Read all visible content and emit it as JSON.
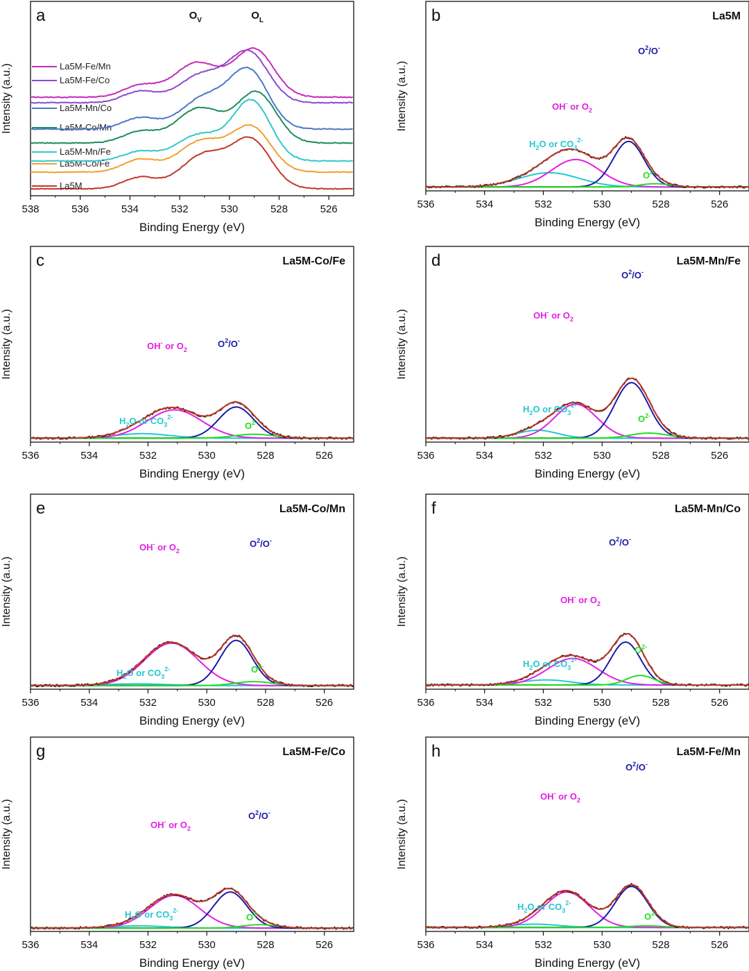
{
  "figure": {
    "colors": {
      "raw": "#111111",
      "envelope": "#c0392b",
      "oh": "#e31ee3",
      "o2o": "#1a1aa8",
      "h2o": "#22c8d2",
      "o2": "#22dd22",
      "background": "#8a8a2a"
    }
  },
  "chart_data": [
    {
      "panel": "a",
      "type": "line",
      "title": "",
      "xlabel": "Binding Energy (eV)",
      "ylabel": "Intensity (a.u.)",
      "xlim": [
        538,
        525
      ],
      "xticks": [
        538,
        536,
        534,
        532,
        530,
        528,
        526
      ],
      "annotations": [
        {
          "text": "O",
          "sub": "V",
          "x": 531.4
        },
        {
          "text": "O",
          "sub": "L",
          "x": 528.9
        }
      ],
      "series": [
        {
          "name": "La5M",
          "color": "#c0392b",
          "offset": 0.0,
          "baseline": 0.02,
          "tail": 0.0,
          "peaks": [
            [
              533.6,
              0.7,
              0.18
            ],
            [
              531.0,
              0.95,
              0.55
            ],
            [
              529.1,
              0.8,
              0.75
            ]
          ]
        },
        {
          "name": "La5M-Co/Fe",
          "color": "#f0a030",
          "offset": 0.12,
          "baseline": 0.02,
          "tail": 0.0,
          "peaks": [
            [
              533.6,
              0.7,
              0.2
            ],
            [
              531.1,
              0.95,
              0.5
            ],
            [
              529.1,
              0.8,
              0.7
            ]
          ]
        },
        {
          "name": "La5M-Mn/Fe",
          "color": "#30c8c8",
          "offset": 0.2,
          "baseline": 0.02,
          "tail": 0.0,
          "peaks": [
            [
              533.6,
              0.7,
              0.15
            ],
            [
              531.2,
              0.95,
              0.42
            ],
            [
              529.1,
              0.78,
              0.95
            ]
          ]
        },
        {
          "name": "La5M-Co/Mn",
          "color": "#1e8c5a",
          "offset": 0.33,
          "baseline": 0.02,
          "tail": 0.0,
          "peaks": [
            [
              533.6,
              0.7,
              0.18
            ],
            [
              531.2,
              0.95,
              0.56
            ],
            [
              528.9,
              0.8,
              0.8
            ]
          ]
        },
        {
          "name": "La5M-Mn/Co",
          "color": "#4a78c8",
          "offset": 0.43,
          "baseline": 0.02,
          "tail": 0.0,
          "peaks": [
            [
              533.6,
              0.7,
              0.18
            ],
            [
              531.0,
              0.95,
              0.5
            ],
            [
              529.2,
              0.8,
              0.9
            ]
          ]
        },
        {
          "name": "La5M-Fe/Co",
          "color": "#8a4ad0",
          "offset": 0.62,
          "baseline": 0.02,
          "tail": 0.0,
          "peaks": [
            [
              533.6,
              0.7,
              0.18
            ],
            [
              531.1,
              0.95,
              0.45
            ],
            [
              529.2,
              0.8,
              0.78
            ]
          ]
        },
        {
          "name": "La5M-Fe/Mn",
          "color": "#c42ab8",
          "offset": 0.66,
          "baseline": 0.02,
          "tail": 0.0,
          "peaks": [
            [
              533.6,
              0.7,
              0.18
            ],
            [
              531.3,
              0.95,
              0.55
            ],
            [
              529.0,
              0.8,
              0.76
            ]
          ]
        }
      ]
    },
    {
      "panel": "b",
      "type": "line",
      "title": "La5M",
      "xlabel": "Binding Energy (eV)",
      "ylabel": "Intensity (a.u.)",
      "xlim": [
        536,
        525
      ],
      "xticks": [
        536,
        534,
        532,
        530,
        528,
        526
      ],
      "baseline": 0.02,
      "components": [
        {
          "name": "H2O or CO3 2-",
          "x0": 531.8,
          "fwhm": 2.4,
          "height": 0.26
        },
        {
          "name": "OH- or O2",
          "x0": 530.9,
          "fwhm": 1.95,
          "height": 0.5
        },
        {
          "name": "O2 2-/O-",
          "x0": 529.1,
          "fwhm": 1.25,
          "height": 0.83
        },
        {
          "name": "O2-",
          "x0": 528.2,
          "fwhm": 1.2,
          "height": 0.06
        }
      ]
    },
    {
      "panel": "c",
      "type": "line",
      "title": "La5M-Co/Fe",
      "xlabel": "Binding Energy (eV)",
      "ylabel": "Intensity (a.u.)",
      "xlim": [
        536,
        525
      ],
      "xticks": [
        536,
        534,
        532,
        530,
        528,
        526
      ],
      "baseline": 0.02,
      "components": [
        {
          "name": "H2O or CO3 2-",
          "x0": 532.2,
          "fwhm": 2.2,
          "height": 0.08
        },
        {
          "name": "OH- or O2",
          "x0": 531.1,
          "fwhm": 2.2,
          "height": 0.5
        },
        {
          "name": "O2 2-/O-",
          "x0": 529.0,
          "fwhm": 1.4,
          "height": 0.55
        },
        {
          "name": "O2-",
          "x0": 528.4,
          "fwhm": 1.6,
          "height": 0.07
        }
      ]
    },
    {
      "panel": "d",
      "type": "line",
      "title": "La5M-Mn/Fe",
      "xlabel": "Binding Energy (eV)",
      "ylabel": "Intensity (a.u.)",
      "xlim": [
        536,
        525
      ],
      "xticks": [
        536,
        534,
        532,
        530,
        528,
        526
      ],
      "baseline": 0.02,
      "components": [
        {
          "name": "H2O or CO3 2-",
          "x0": 532.2,
          "fwhm": 1.6,
          "height": 0.14
        },
        {
          "name": "OH- or O2",
          "x0": 530.9,
          "fwhm": 1.7,
          "height": 0.6
        },
        {
          "name": "O2 2-/O-",
          "x0": 529.0,
          "fwhm": 1.35,
          "height": 0.98
        },
        {
          "name": "O2-",
          "x0": 528.4,
          "fwhm": 1.5,
          "height": 0.09
        }
      ]
    },
    {
      "panel": "e",
      "type": "line",
      "title": "La5M-Co/Mn",
      "xlabel": "Binding Energy (eV)",
      "ylabel": "Intensity (a.u.)",
      "xlim": [
        536,
        525
      ],
      "xticks": [
        536,
        534,
        532,
        530,
        528,
        526
      ],
      "baseline": 0.015,
      "components": [
        {
          "name": "H2O or CO3 2-",
          "x0": 532.4,
          "fwhm": 2.5,
          "height": 0.03
        },
        {
          "name": "OH- or O2",
          "x0": 531.2,
          "fwhm": 2.15,
          "height": 0.75
        },
        {
          "name": "O2 2-/O-",
          "x0": 529.0,
          "fwhm": 1.3,
          "height": 0.8
        },
        {
          "name": "O2-",
          "x0": 528.4,
          "fwhm": 1.5,
          "height": 0.07
        }
      ]
    },
    {
      "panel": "f",
      "type": "line",
      "title": "La5M-Mn/Co",
      "xlabel": "Binding Energy (eV)",
      "ylabel": "Intensity (a.u.)",
      "xlim": [
        536,
        525
      ],
      "xticks": [
        536,
        534,
        532,
        530,
        528,
        526
      ],
      "baseline": 0.025,
      "components": [
        {
          "name": "H2O or CO3 2-",
          "x0": 531.9,
          "fwhm": 2.0,
          "height": 0.09
        },
        {
          "name": "OH- or O2",
          "x0": 531.0,
          "fwhm": 2.0,
          "height": 0.47
        },
        {
          "name": "O2 2-/O-",
          "x0": 529.2,
          "fwhm": 1.2,
          "height": 0.76
        },
        {
          "name": "O2-",
          "x0": 528.7,
          "fwhm": 1.1,
          "height": 0.17
        }
      ]
    },
    {
      "panel": "g",
      "type": "line",
      "title": "La5M-Fe/Co",
      "xlabel": "Binding Energy (eV)",
      "ylabel": "Intensity (a.u.)",
      "xlim": [
        536,
        525
      ],
      "xticks": [
        536,
        534,
        532,
        530,
        528,
        526
      ],
      "baseline": 0.01,
      "components": [
        {
          "name": "H2O or CO3 2-",
          "x0": 532.3,
          "fwhm": 2.2,
          "height": 0.04
        },
        {
          "name": "OH- or O2",
          "x0": 531.1,
          "fwhm": 2.0,
          "height": 0.58
        },
        {
          "name": "O2 2-/O-",
          "x0": 529.2,
          "fwhm": 1.35,
          "height": 0.64
        },
        {
          "name": "O2-",
          "x0": 528.2,
          "fwhm": 1.4,
          "height": 0.06
        }
      ]
    },
    {
      "panel": "h",
      "type": "line",
      "title": "La5M-Fe/Mn",
      "xlabel": "Binding Energy (eV)",
      "ylabel": "Intensity (a.u.)",
      "xlim": [
        536,
        525
      ],
      "xticks": [
        536,
        534,
        532,
        530,
        528,
        526
      ],
      "baseline": 0.02,
      "components": [
        {
          "name": "H2O or CO3 2-",
          "x0": 532.3,
          "fwhm": 2.0,
          "height": 0.06
        },
        {
          "name": "OH- or O2",
          "x0": 531.2,
          "fwhm": 1.8,
          "height": 0.63
        },
        {
          "name": "O2 2-/O-",
          "x0": 529.0,
          "fwhm": 1.3,
          "height": 0.73
        },
        {
          "name": "O2-",
          "x0": 528.5,
          "fwhm": 1.4,
          "height": 0.03
        }
      ]
    }
  ]
}
